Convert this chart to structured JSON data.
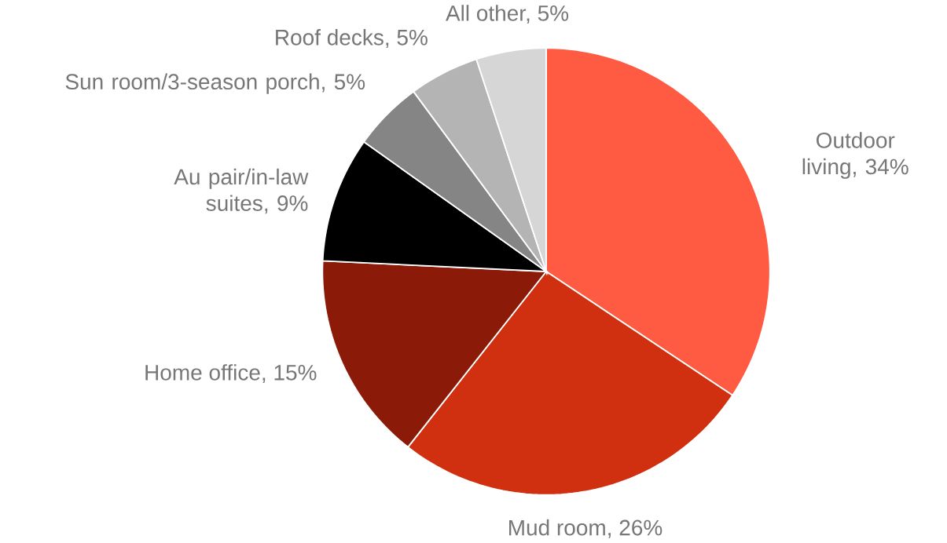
{
  "chart_data": {
    "type": "pie",
    "categories": [
      "Outdoor living, 34%",
      "Mud room, 26%",
      "Home office, 15%",
      "Au pair/in-law suites, 9%",
      "Sun room/3-season porch, 5%",
      "Roof decks, 5%",
      "All other, 5%"
    ],
    "values": [
      34,
      26,
      15,
      9,
      5,
      5,
      5
    ],
    "colors": [
      "#ff5a42",
      "#d0300f",
      "#8b1a08",
      "#000000",
      "#858585",
      "#b4b4b4",
      "#d6d6d6"
    ]
  }
}
